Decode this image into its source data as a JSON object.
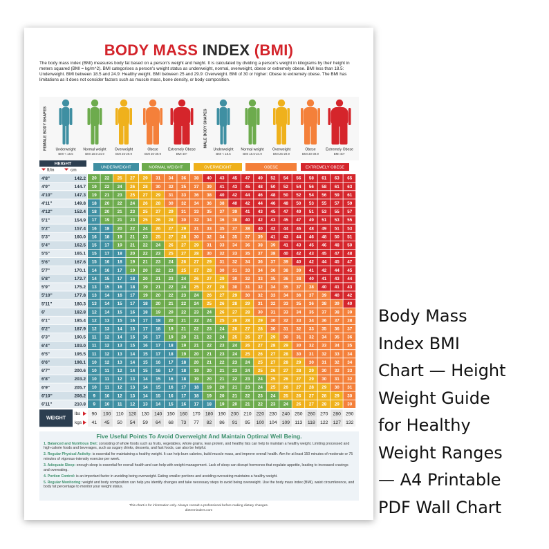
{
  "header": {
    "title": [
      "BODY MASS ",
      "INDEX",
      " (BMI)"
    ],
    "intro": "The body mass index (BMI) measures body fat based on a person's weight and height. It is calculated by dividing a person's weight in kilograms by their height in meters squared (BMI = kg/m^2). BMI categorises a person's weight status as underweight, normal, overweight, obese or extremely obese. BMI less than 18.5: Underweight. BMI between 18.5 and 24.9: Healthy weight. BMI between 25 and 29.9: Overweight. BMI of 30 or higher: Obese to extremely obese. The BMI has limitations as it does not consider factors such as muscle mass, bone density, or body composition."
  },
  "body_shapes": {
    "female_label": "FEMALE BODY SHAPES",
    "male_label": "MALE BODY SHAPES",
    "captions": [
      {
        "name": "Underweight",
        "range": "BMI < 18.5"
      },
      {
        "name": "Normal weight",
        "range": "BMI 18.5-24.9"
      },
      {
        "name": "Overweight",
        "range": "BMI 25-29.9"
      },
      {
        "name": "Obese",
        "range": "BMI 30-39.9"
      },
      {
        "name": "Extremely Obese",
        "range": "BMI 40+"
      }
    ]
  },
  "table": {
    "height_label": "HEIGHT",
    "ft_in_label": "ft/in",
    "cm_label": "cm",
    "weight_label": "WEIGHT",
    "lbs_label": "lbs",
    "kgs_label": "kgs",
    "bands": [
      {
        "name": "UNDERWEIGHT",
        "color": "#3f8fa2"
      },
      {
        "name": "NORMAL WEIGHT",
        "color": "#6dab4d",
        "from": 18.5
      },
      {
        "name": "OVERWEIGHT",
        "color": "#efb11c",
        "from": 25
      },
      {
        "name": "OBESE",
        "color": "#f4803a",
        "from": 30
      },
      {
        "name": "EXTREMELY OBESE",
        "color": "#d5252b",
        "from": 40
      }
    ],
    "lbs": [
      90,
      100,
      110,
      120,
      130,
      140,
      150,
      160,
      170,
      180,
      190,
      200,
      210,
      220,
      230,
      240,
      250,
      260,
      270,
      280,
      290
    ],
    "kgs": [
      41,
      45,
      50,
      54,
      59,
      64,
      68,
      73,
      77,
      82,
      86,
      91,
      95,
      100,
      104,
      109,
      113,
      118,
      122,
      127,
      132
    ],
    "rows": [
      {
        "ft_in": "4'8\"",
        "cm": "142.2",
        "bmi": [
          20,
          22,
          25,
          27,
          29,
          31,
          34,
          36,
          38,
          40,
          43,
          45,
          47,
          49,
          52,
          54,
          56,
          58,
          61,
          63,
          65
        ]
      },
      {
        "ft_in": "4'9\"",
        "cm": "144.7",
        "bmi": [
          19,
          22,
          24,
          26,
          28,
          30,
          32,
          35,
          37,
          39,
          41,
          43,
          45,
          48,
          50,
          52,
          54,
          56,
          58,
          61,
          63
        ]
      },
      {
        "ft_in": "4'10\"",
        "cm": "147.3",
        "bmi": [
          19,
          21,
          23,
          25,
          27,
          29,
          31,
          33,
          36,
          38,
          40,
          42,
          44,
          46,
          48,
          50,
          52,
          54,
          56,
          59,
          61
        ]
      },
      {
        "ft_in": "4'11\"",
        "cm": "149.8",
        "bmi": [
          18,
          20,
          22,
          24,
          26,
          28,
          30,
          32,
          34,
          36,
          38,
          40,
          42,
          44,
          46,
          48,
          50,
          53,
          55,
          57,
          59
        ]
      },
      {
        "ft_in": "4'12\"",
        "cm": "152.4",
        "bmi": [
          18,
          20,
          21,
          23,
          25,
          27,
          29,
          31,
          33,
          35,
          37,
          39,
          41,
          43,
          45,
          47,
          49,
          51,
          53,
          55,
          57
        ]
      },
      {
        "ft_in": "5'1\"",
        "cm": "154.9",
        "bmi": [
          17,
          19,
          21,
          23,
          25,
          26,
          28,
          30,
          32,
          34,
          36,
          38,
          40,
          42,
          43,
          45,
          47,
          49,
          51,
          53,
          55
        ]
      },
      {
        "ft_in": "5'2\"",
        "cm": "157.4",
        "bmi": [
          16,
          18,
          20,
          22,
          24,
          26,
          27,
          29,
          31,
          33,
          35,
          37,
          38,
          40,
          42,
          44,
          46,
          48,
          49,
          51,
          53
        ]
      },
      {
        "ft_in": "5'3\"",
        "cm": "160.0",
        "bmi": [
          16,
          18,
          19,
          21,
          23,
          25,
          27,
          28,
          30,
          32,
          34,
          35,
          37,
          39,
          41,
          43,
          44,
          46,
          48,
          50,
          51
        ]
      },
      {
        "ft_in": "5'4\"",
        "cm": "162.5",
        "bmi": [
          15,
          17,
          19,
          21,
          22,
          24,
          26,
          27,
          29,
          31,
          33,
          34,
          36,
          38,
          39,
          41,
          43,
          45,
          46,
          48,
          50
        ]
      },
      {
        "ft_in": "5'5\"",
        "cm": "165.1",
        "bmi": [
          15,
          17,
          18,
          20,
          22,
          23,
          25,
          27,
          28,
          30,
          32,
          33,
          35,
          37,
          38,
          40,
          42,
          43,
          45,
          47,
          48
        ]
      },
      {
        "ft_in": "5'6\"",
        "cm": "167.6",
        "bmi": [
          15,
          16,
          18,
          19,
          21,
          23,
          24,
          26,
          27,
          29,
          31,
          32,
          34,
          36,
          37,
          39,
          40,
          42,
          44,
          45,
          47
        ]
      },
      {
        "ft_in": "5'7\"",
        "cm": "170.1",
        "bmi": [
          14,
          16,
          17,
          19,
          20,
          22,
          23,
          25,
          27,
          28,
          30,
          31,
          33,
          34,
          36,
          38,
          39,
          41,
          42,
          44,
          45
        ]
      },
      {
        "ft_in": "5'8\"",
        "cm": "172.7",
        "bmi": [
          14,
          15,
          17,
          18,
          20,
          21,
          23,
          24,
          26,
          27,
          29,
          30,
          32,
          33,
          35,
          36,
          38,
          40,
          41,
          43,
          44
        ]
      },
      {
        "ft_in": "5'9\"",
        "cm": "175.2",
        "bmi": [
          13,
          15,
          16,
          18,
          19,
          21,
          22,
          24,
          25,
          27,
          28,
          30,
          31,
          32,
          34,
          35,
          37,
          38,
          40,
          41,
          43
        ]
      },
      {
        "ft_in": "5'10\"",
        "cm": "177.8",
        "bmi": [
          13,
          14,
          16,
          17,
          19,
          20,
          22,
          23,
          24,
          26,
          27,
          29,
          30,
          32,
          33,
          34,
          36,
          37,
          39,
          40,
          42
        ]
      },
      {
        "ft_in": "5'11\"",
        "cm": "180.3",
        "bmi": [
          13,
          14,
          15,
          17,
          18,
          20,
          21,
          22,
          24,
          25,
          26,
          28,
          29,
          31,
          32,
          33,
          35,
          36,
          38,
          39,
          40
        ]
      },
      {
        "ft_in": "6'",
        "cm": "182.8",
        "bmi": [
          12,
          14,
          15,
          16,
          18,
          19,
          20,
          22,
          23,
          24,
          26,
          27,
          28,
          30,
          31,
          33,
          34,
          35,
          37,
          38,
          39
        ]
      },
      {
        "ft_in": "6'1\"",
        "cm": "185.4",
        "bmi": [
          12,
          13,
          15,
          16,
          17,
          18,
          20,
          21,
          22,
          24,
          25,
          26,
          28,
          29,
          30,
          32,
          33,
          34,
          36,
          37,
          38
        ]
      },
      {
        "ft_in": "6'2\"",
        "cm": "187.9",
        "bmi": [
          12,
          13,
          14,
          15,
          17,
          18,
          19,
          21,
          22,
          23,
          24,
          26,
          27,
          28,
          30,
          31,
          32,
          33,
          35,
          36,
          37
        ]
      },
      {
        "ft_in": "6'3\"",
        "cm": "190.5",
        "bmi": [
          11,
          12,
          14,
          15,
          16,
          17,
          19,
          20,
          21,
          22,
          24,
          25,
          26,
          27,
          29,
          30,
          31,
          32,
          34,
          35,
          36
        ]
      },
      {
        "ft_in": "6'4\"",
        "cm": "193.0",
        "bmi": [
          11,
          12,
          13,
          15,
          16,
          17,
          18,
          19,
          21,
          22,
          23,
          24,
          26,
          27,
          28,
          29,
          30,
          32,
          33,
          34,
          35
        ]
      },
      {
        "ft_in": "6'5\"",
        "cm": "195.5",
        "bmi": [
          11,
          12,
          13,
          14,
          15,
          17,
          18,
          19,
          20,
          21,
          23,
          24,
          25,
          26,
          27,
          28,
          30,
          31,
          32,
          33,
          34
        ]
      },
      {
        "ft_in": "6'6\"",
        "cm": "198.1",
        "bmi": [
          10,
          12,
          13,
          14,
          15,
          16,
          17,
          18,
          20,
          21,
          22,
          23,
          24,
          25,
          27,
          28,
          29,
          30,
          31,
          32,
          34
        ]
      },
      {
        "ft_in": "6'7\"",
        "cm": "200.6",
        "bmi": [
          10,
          11,
          12,
          14,
          15,
          16,
          17,
          18,
          19,
          20,
          21,
          23,
          24,
          25,
          26,
          27,
          28,
          29,
          30,
          32,
          33
        ]
      },
      {
        "ft_in": "6'8\"",
        "cm": "203.2",
        "bmi": [
          10,
          11,
          12,
          13,
          14,
          15,
          16,
          18,
          19,
          20,
          21,
          22,
          23,
          24,
          25,
          26,
          27,
          29,
          30,
          31,
          32
        ]
      },
      {
        "ft_in": "6'9\"",
        "cm": "205.7",
        "bmi": [
          10,
          11,
          12,
          13,
          14,
          15,
          16,
          17,
          18,
          19,
          20,
          21,
          23,
          24,
          25,
          26,
          27,
          28,
          29,
          30,
          31
        ]
      },
      {
        "ft_in": "6'10\"",
        "cm": "208.2",
        "bmi": [
          9,
          10,
          12,
          13,
          14,
          15,
          16,
          17,
          18,
          19,
          20,
          21,
          22,
          23,
          24,
          25,
          26,
          27,
          28,
          29,
          30
        ]
      },
      {
        "ft_in": "6'11\"",
        "cm": "210.8",
        "bmi": [
          9,
          10,
          11,
          12,
          13,
          14,
          15,
          16,
          17,
          18,
          19,
          20,
          21,
          22,
          23,
          24,
          26,
          27,
          28,
          29,
          30
        ]
      }
    ]
  },
  "tips": {
    "title": "Five Useful Points To Avoid Overweight And Maintain Optimal Well Being.",
    "items": [
      {
        "head": "1. Balanced and Nutritious Diet:",
        "text": " consisting of whole foods such as fruits, vegetables, whole grains, lean protein, and healthy fats can help to maintain a healthy weight. Limiting processed and high-calorie foods and beverages, such as sugary drinks, desserts, and fast foods, can also be helpful."
      },
      {
        "head": "2. Regular Physical Activity:",
        "text": " is essential for maintaining a healthy weight. It can help burn calories, build muscle mass, and improve overall health. Aim for at least 150 minutes of moderate or 75 minutes of vigorous-intensity exercise per week."
      },
      {
        "head": "3. Adequate Sleep:",
        "text": " enough sleep is essential for overall health and can help with weight management. Lack of sleep can disrupt hormones that regulate appetite, leading to increased cravings and overeating."
      },
      {
        "head": "4. Portion Control:",
        "text": " is an important factor in avoiding being overweight. Eating smaller portions and avoiding overeating maintains a healthy weight."
      },
      {
        "head": "5. Regular Monitoring:",
        "text": " weight and body composition can help you identify changes and take necessary steps to avoid being overweight. Use the body mass index (BMI), waist circumference, and body fat percentage to monitor your weight status."
      }
    ]
  },
  "footer": [
    "This chart is for information only. Always consult a professional before making dietary changes.",
    "dietreminders.com"
  ],
  "caption": [
    "Body Mass",
    "Index BMI",
    "Chart — Height",
    "Weight Guide",
    "for Healthy",
    "Weight Ranges",
    "— A4 Printable",
    "PDF Wall Chart"
  ]
}
